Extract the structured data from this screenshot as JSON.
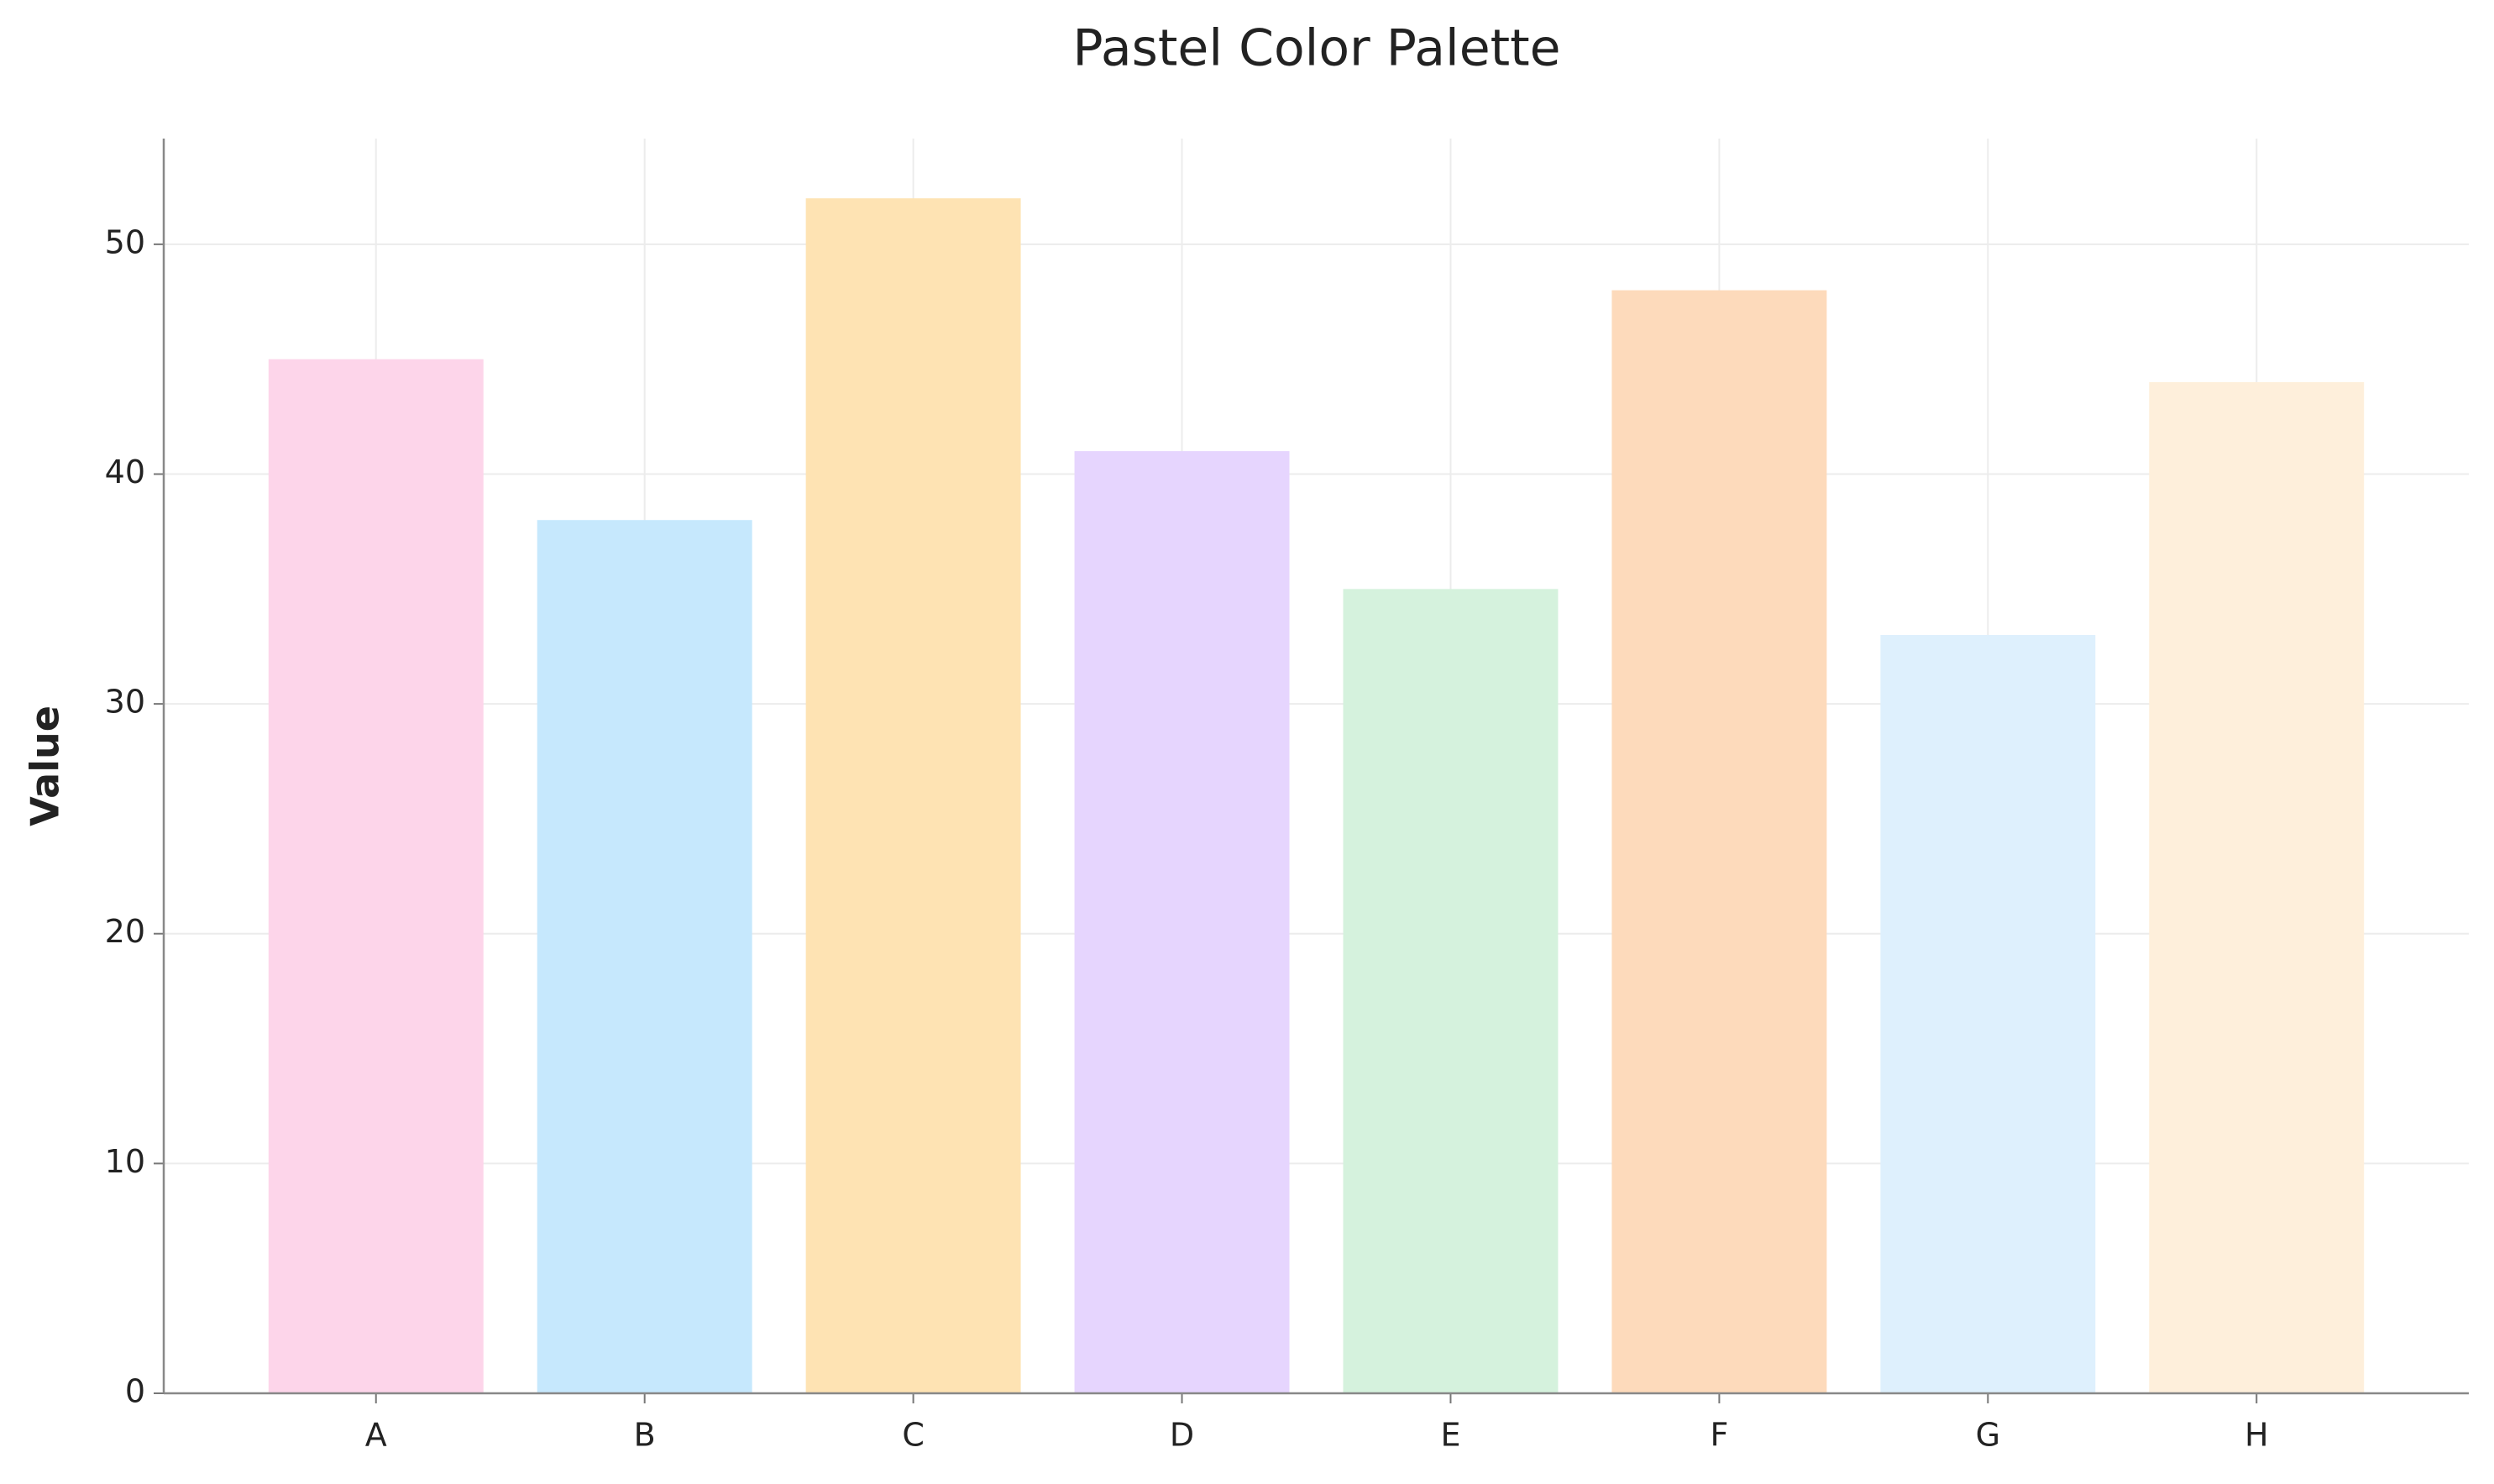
{
  "chart_data": {
    "type": "bar",
    "title": "Pastel Color Palette",
    "ylabel": "Value",
    "categories": [
      "A",
      "B",
      "C",
      "D",
      "E",
      "F",
      "G",
      "H"
    ],
    "values": [
      45,
      38,
      52,
      41,
      35,
      48,
      33,
      44
    ],
    "colors": [
      "#fdd5ea",
      "#c6e8fd",
      "#fee3b3",
      "#e6d5fe",
      "#d5f2dd",
      "#fddabb",
      "#def0fd",
      "#feefdb"
    ],
    "ylim": [
      0,
      54.6
    ],
    "yticks": [
      0,
      10,
      20,
      30,
      40,
      50
    ],
    "grid": true
  }
}
